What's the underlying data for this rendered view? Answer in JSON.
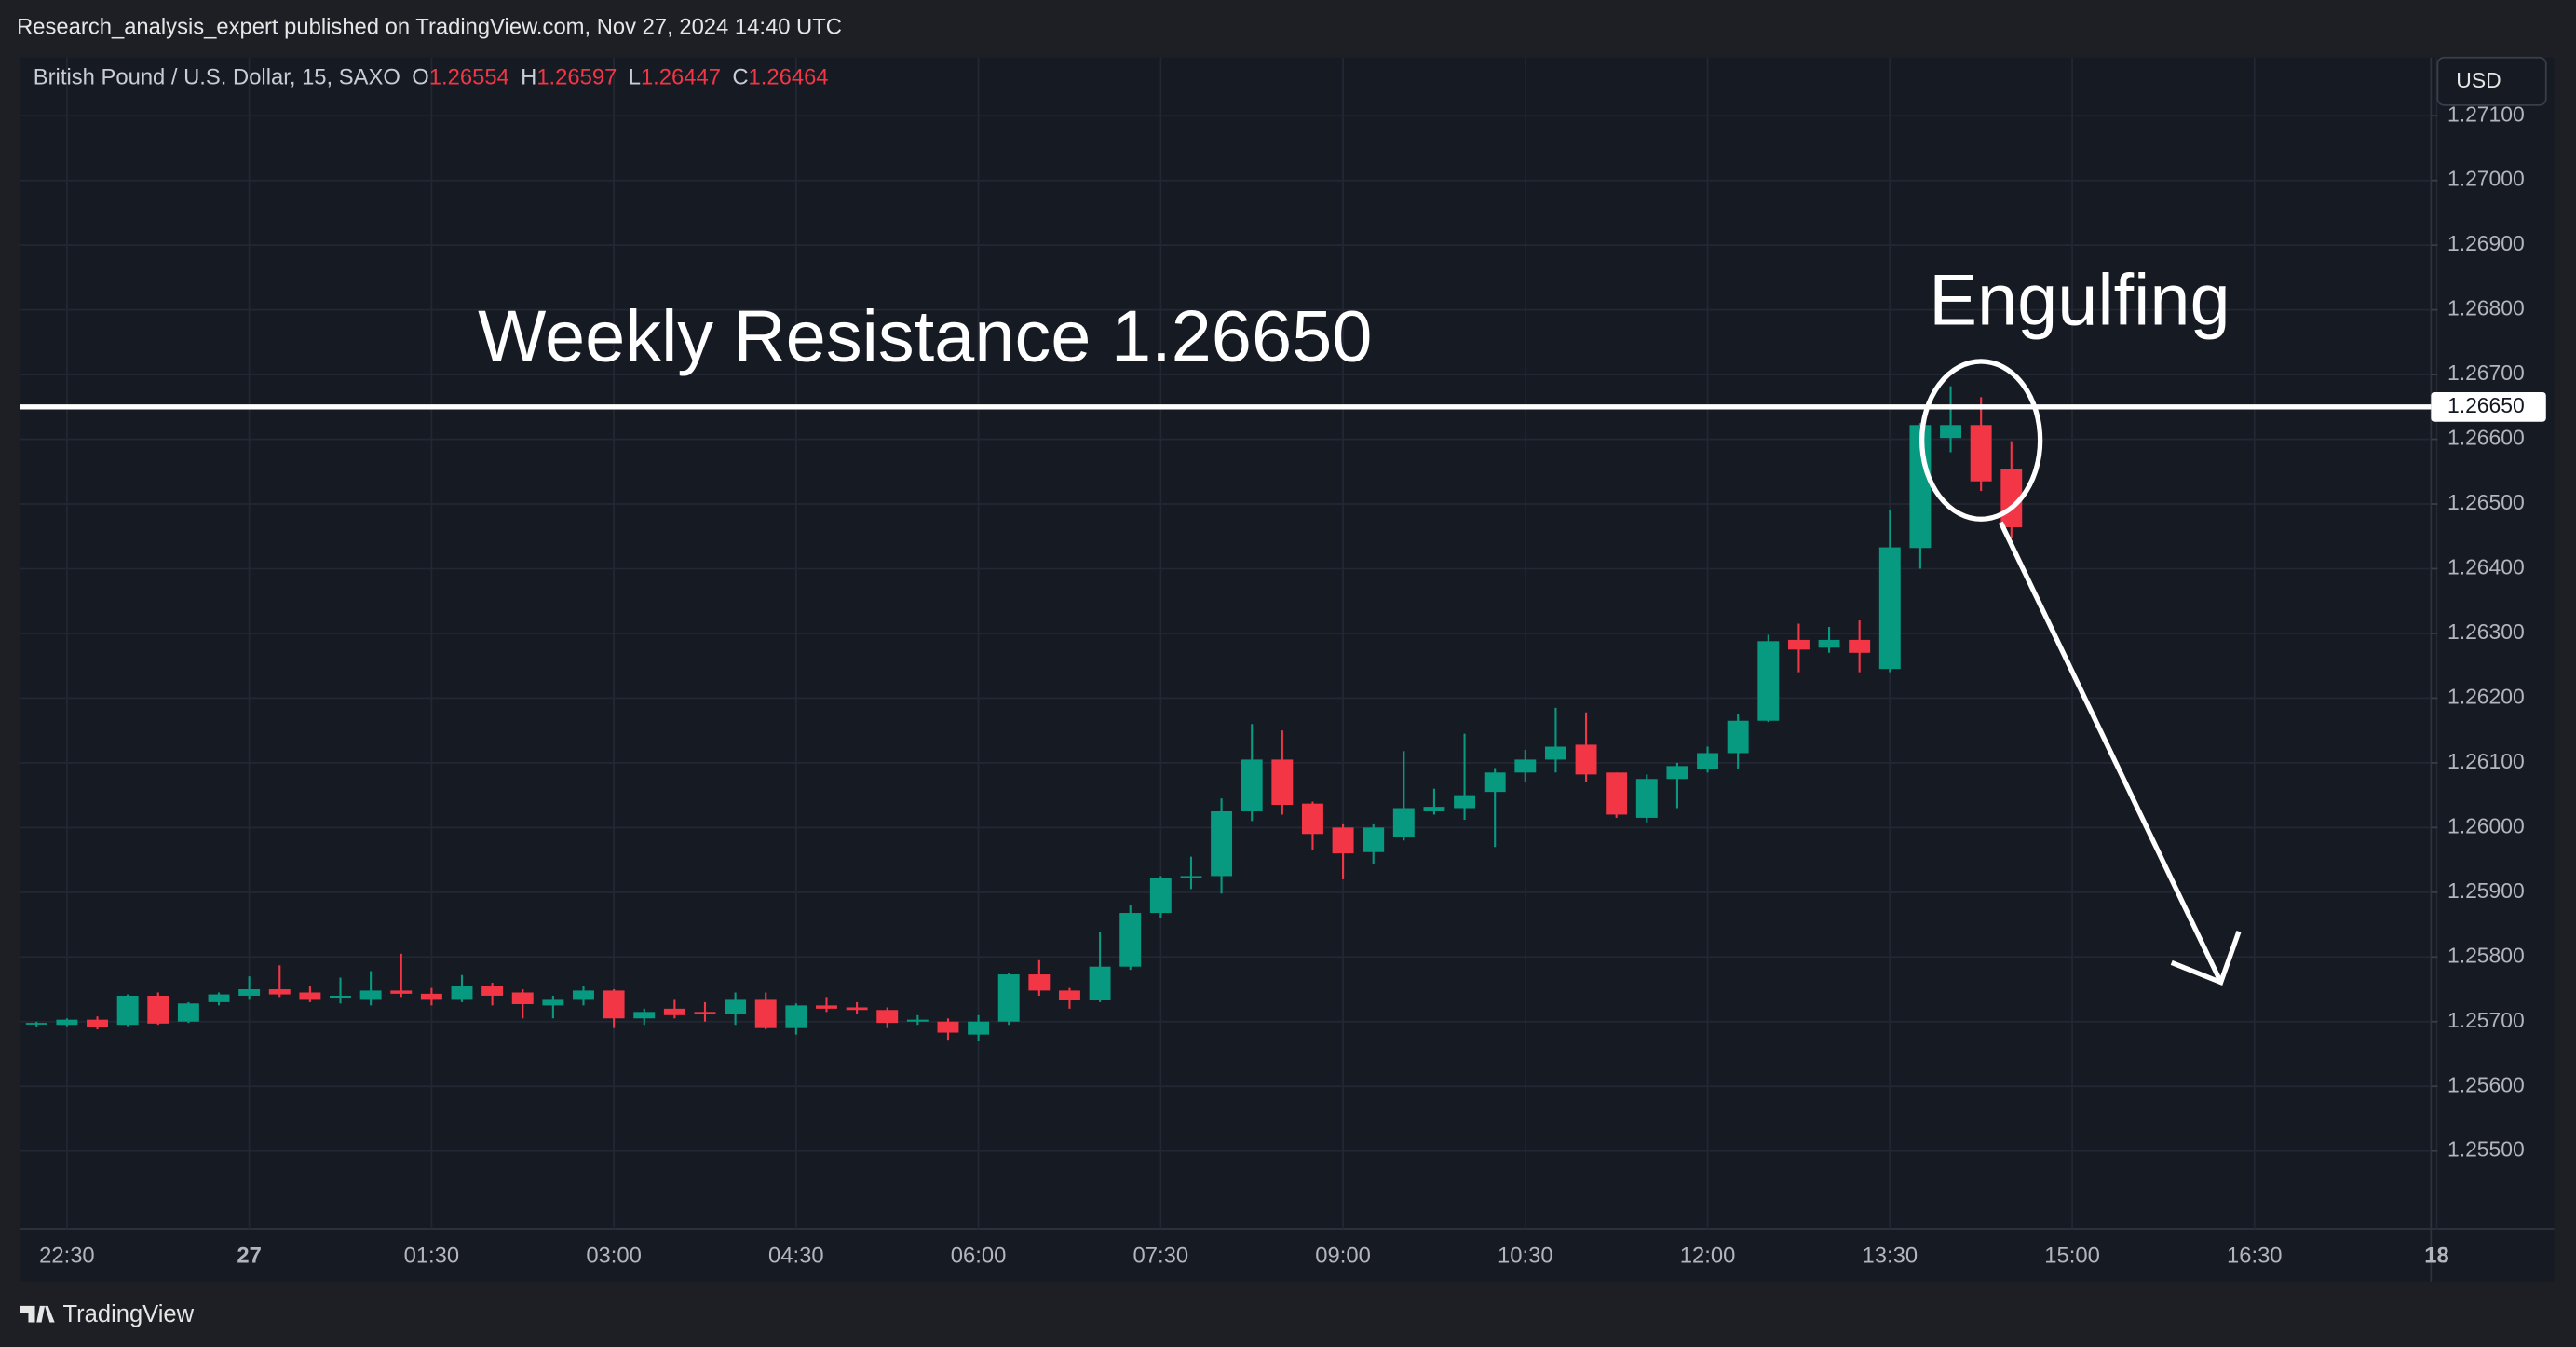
{
  "header": {
    "publisher": "Research_analysis_expert published on TradingView.com, Nov 27, 2024 14:40 UTC",
    "currency": "USD",
    "brand": "TradingView"
  },
  "chart_data": {
    "type": "candlestick",
    "title": "British Pound / U.S. Dollar, 15, SAXO",
    "ohlc_labels": [
      "O",
      "H",
      "L",
      "C"
    ],
    "categories": [
      null,
      "22:30",
      null,
      null,
      null,
      null,
      null,
      "27",
      null,
      null,
      null,
      null,
      null,
      "01:30",
      null,
      null,
      null,
      null,
      null,
      "03:00",
      null,
      null,
      null,
      null,
      null,
      "04:30",
      null,
      null,
      null,
      null,
      null,
      "06:00",
      null,
      null,
      null,
      null,
      null,
      "07:30",
      null,
      null,
      null,
      null,
      null,
      "09:00",
      null,
      null,
      null,
      null,
      null,
      "10:30",
      null,
      null,
      null,
      null,
      null,
      "12:00",
      null,
      null,
      null,
      null,
      null,
      "13:30",
      null,
      null,
      null,
      null,
      null,
      "15:00",
      null,
      null,
      null,
      null,
      null,
      "16:30",
      null,
      null,
      null,
      null,
      null,
      "18"
    ],
    "open": [
      1.25697,
      1.25695,
      1.25703,
      1.25695,
      1.2574,
      1.257,
      1.2573,
      1.2574,
      1.2575,
      1.25745,
      1.25737,
      1.25735,
      1.25748,
      1.25743,
      1.25735,
      1.25755,
      1.25745,
      1.25725,
      1.25735,
      1.25748,
      1.25705,
      1.2572,
      1.25715,
      1.25712,
      1.25735,
      1.2569,
      1.25725,
      1.25722,
      1.25718,
      1.257,
      1.257,
      1.2568,
      1.257,
      1.25773,
      1.25748,
      1.25733,
      1.25785,
      1.25868,
      1.25922,
      1.25925,
      1.26025,
      1.26105,
      1.26037,
      1.26,
      1.25962,
      1.25985,
      1.26025,
      1.2603,
      1.26055,
      1.26085,
      1.26105,
      1.26128,
      1.26085,
      1.26015,
      1.26075,
      1.2609,
      1.26115,
      1.26165,
      1.2629,
      1.26278,
      1.2629,
      1.26245,
      1.26432,
      1.26602,
      1.26622,
      1.26554,
      null,
      null,
      null,
      null,
      null,
      null,
      null,
      null,
      null,
      null,
      null,
      null,
      null,
      null
    ],
    "high": [
      1.257,
      1.25705,
      1.25708,
      1.25742,
      1.25745,
      1.2573,
      1.25745,
      1.2577,
      1.25787,
      1.25755,
      1.25768,
      1.25778,
      1.25805,
      1.25752,
      1.25772,
      1.2576,
      1.2575,
      1.2574,
      1.25755,
      1.2575,
      1.2572,
      1.25735,
      1.2573,
      1.25745,
      1.25745,
      1.25728,
      1.25738,
      1.2573,
      1.25722,
      1.2571,
      1.25705,
      1.2571,
      1.25775,
      1.25795,
      1.25752,
      1.25838,
      1.2588,
      1.25925,
      1.25955,
      1.26045,
      1.2616,
      1.2615,
      1.2604,
      1.26005,
      1.26005,
      1.26118,
      1.2606,
      1.26145,
      1.26092,
      1.2612,
      1.26185,
      1.26178,
      1.26085,
      1.26082,
      1.261,
      1.26125,
      1.26175,
      1.26298,
      1.26315,
      1.2631,
      1.2632,
      1.2649,
      1.26625,
      1.26682,
      1.26665,
      1.26597,
      null,
      null,
      null,
      null,
      null,
      null,
      null,
      null,
      null,
      null,
      null,
      null,
      null,
      null
    ],
    "low": [
      1.25692,
      1.25693,
      1.25688,
      1.25693,
      1.25695,
      1.25698,
      1.25725,
      1.25735,
      1.25738,
      1.2573,
      1.25728,
      1.25725,
      1.25738,
      1.25725,
      1.2573,
      1.25725,
      1.25705,
      1.25705,
      1.25725,
      1.2569,
      1.25695,
      1.25705,
      1.257,
      1.25695,
      1.25688,
      1.2568,
      1.25715,
      1.25712,
      1.2569,
      1.25695,
      1.25672,
      1.2567,
      1.25695,
      1.2574,
      1.2572,
      1.2573,
      1.2578,
      1.2586,
      1.25905,
      1.25898,
      1.2601,
      1.2602,
      1.25965,
      1.2592,
      1.25943,
      1.2598,
      1.2602,
      1.26012,
      1.2597,
      1.2607,
      1.26085,
      1.2607,
      1.26015,
      1.26008,
      1.2603,
      1.26085,
      1.2609,
      1.26163,
      1.2624,
      1.2627,
      1.2624,
      1.2624,
      1.264,
      1.2658,
      1.2652,
      1.26447,
      null,
      null,
      null,
      null,
      null,
      null,
      null,
      null,
      null,
      null,
      null,
      null,
      null,
      null
    ],
    "close": [
      1.25698,
      1.25703,
      1.25692,
      1.2574,
      1.25697,
      1.25728,
      1.25742,
      1.2575,
      1.25742,
      1.25735,
      1.2574,
      1.25748,
      1.25743,
      1.25735,
      1.25755,
      1.2574,
      1.25727,
      1.25735,
      1.25748,
      1.25705,
      1.25715,
      1.2571,
      1.25712,
      1.25735,
      1.2569,
      1.25725,
      1.2572,
      1.25718,
      1.25698,
      1.25703,
      1.25683,
      1.257,
      1.25773,
      1.25748,
      1.25733,
      1.25785,
      1.25868,
      1.25922,
      1.25925,
      1.26025,
      1.26105,
      1.26035,
      1.2599,
      1.2596,
      1.26,
      1.2603,
      1.26032,
      1.2605,
      1.26085,
      1.26105,
      1.26125,
      1.26082,
      1.2602,
      1.26075,
      1.26095,
      1.26115,
      1.26165,
      1.26288,
      1.26275,
      1.2629,
      1.2627,
      1.26433,
      1.26622,
      1.26622,
      1.26535,
      1.26464,
      null,
      null,
      null,
      null,
      null,
      null,
      null,
      null,
      null,
      null,
      null,
      null,
      null,
      null
    ],
    "up_color": "#089981",
    "down_color": "#f23645",
    "ylim": [
      1.2538,
      1.2719
    ],
    "yticks": [
      {
        "value": 1.255,
        "label": "1.25500"
      },
      {
        "value": 1.256,
        "label": "1.25600"
      },
      {
        "value": 1.257,
        "label": "1.25700"
      },
      {
        "value": 1.258,
        "label": "1.25800"
      },
      {
        "value": 1.259,
        "label": "1.25900"
      },
      {
        "value": 1.26,
        "label": "1.26000"
      },
      {
        "value": 1.261,
        "label": "1.26100"
      },
      {
        "value": 1.262,
        "label": "1.26200"
      },
      {
        "value": 1.263,
        "label": "1.26300"
      },
      {
        "value": 1.264,
        "label": "1.26400"
      },
      {
        "value": 1.265,
        "label": "1.26500"
      },
      {
        "value": 1.266,
        "label": "1.26600"
      },
      {
        "value": 1.267,
        "label": "1.26700"
      },
      {
        "value": 1.268,
        "label": "1.26800"
      },
      {
        "value": 1.269,
        "label": "1.26900"
      },
      {
        "value": 1.27,
        "label": "1.27000"
      },
      {
        "value": 1.271,
        "label": "1.27100"
      }
    ],
    "grid": true,
    "resistance": {
      "value": 1.2665,
      "label": "1.26650"
    },
    "annotations": [
      "Weekly Resistance 1.26650",
      "Engulfing"
    ]
  }
}
